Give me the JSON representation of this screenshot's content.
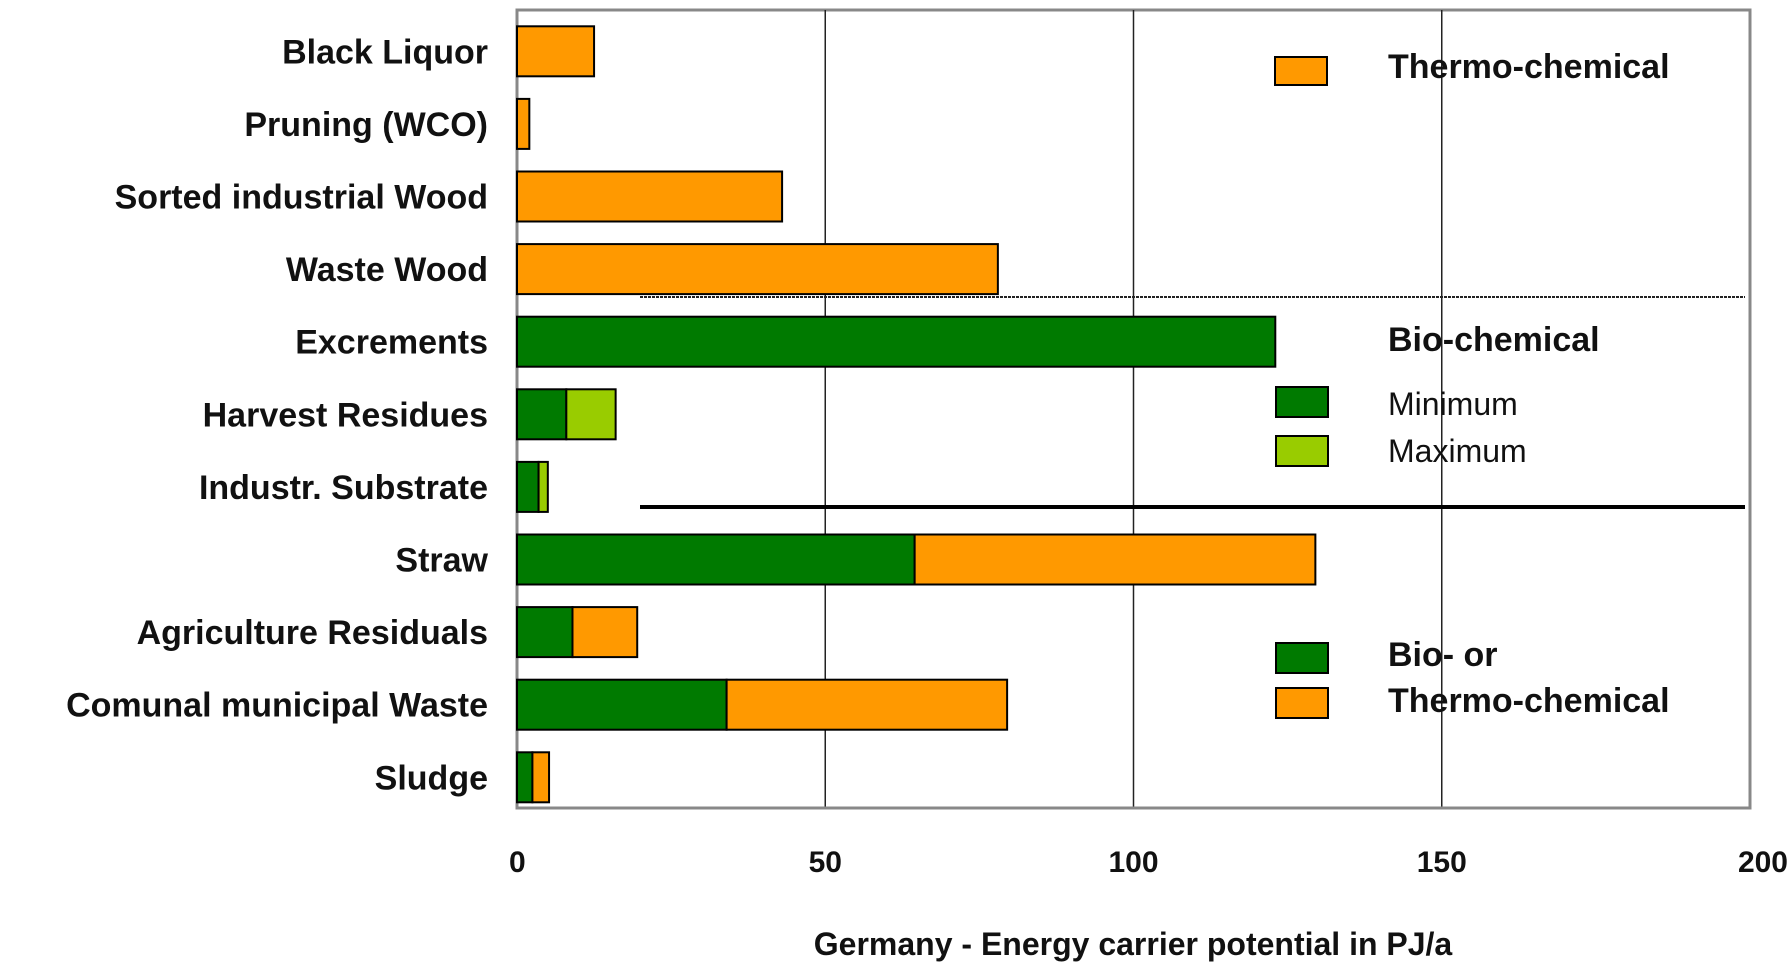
{
  "chart_data": {
    "type": "bar",
    "orientation": "horizontal",
    "stacked": true,
    "categories": [
      "Black Liquor",
      "Pruning (WCO)",
      "Sorted industrial Wood",
      "Waste Wood",
      "Excrements",
      "Harvest Residues",
      "Industr. Substrate",
      "Straw",
      "Agriculture Residuals",
      "Comunal municipal Waste",
      "Sludge"
    ],
    "series": [
      {
        "key": "bio",
        "color": "#007a00",
        "values": [
          0,
          0,
          0,
          0,
          123,
          8,
          3.5,
          64.5,
          9,
          34,
          2.5
        ]
      },
      {
        "key": "bio_max",
        "color": "#99cc00",
        "values": [
          0,
          0,
          0,
          0,
          0,
          8,
          1.5,
          0,
          0,
          0,
          0
        ]
      },
      {
        "key": "thermo",
        "color": "#ff9900",
        "values": [
          12.5,
          2,
          43,
          78,
          0,
          0,
          0,
          65,
          10.5,
          45.5,
          2.7
        ]
      }
    ],
    "xlabel": "Germany - Energy carrier potential in PJ/a",
    "xlim": [
      0,
      200
    ],
    "xticks": [
      "0",
      "50",
      "100",
      "150",
      "200"
    ],
    "xgrid": true,
    "legend": {
      "thermo_label": "Thermo-chemical",
      "bio_header": "Bio-chemical",
      "minimum_label": "Minimum",
      "maximum_label": "Maximum",
      "either_line1": "Bio- or",
      "either_line2": "Thermo-chemical"
    }
  }
}
